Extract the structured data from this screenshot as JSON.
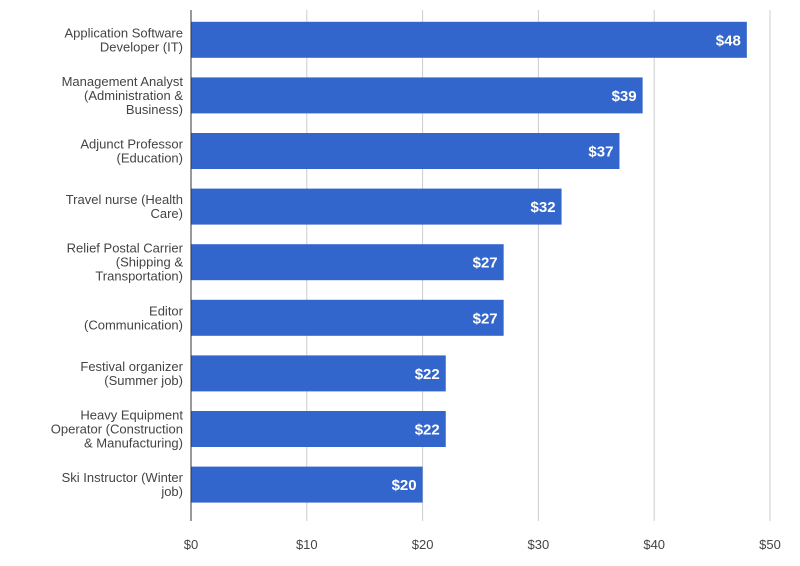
{
  "chart_data": {
    "type": "bar",
    "orientation": "horizontal",
    "title": "",
    "xlabel": "",
    "ylabel": "",
    "xlim": [
      0,
      50
    ],
    "ticks": [
      0,
      10,
      20,
      30,
      40,
      50
    ],
    "tick_labels": [
      "$0",
      "$10",
      "$20",
      "$30",
      "$40",
      "$50"
    ],
    "grid": true,
    "categories": [
      [
        "Application Software",
        "Developer (IT)"
      ],
      [
        "Management Analyst",
        "(Administration &",
        "Business)"
      ],
      [
        "Adjunct Professor",
        "(Education)"
      ],
      [
        "Travel nurse (Health",
        "Care)"
      ],
      [
        "Relief Postal Carrier",
        "(Shipping &",
        "Transportation)"
      ],
      [
        "Editor",
        "(Communication)"
      ],
      [
        "Festival organizer",
        "(Summer job)"
      ],
      [
        "Heavy Equipment",
        "Operator (Construction",
        "& Manufacturing)"
      ],
      [
        "Ski Instructor (Winter",
        "job)"
      ]
    ],
    "values": [
      48,
      39,
      37,
      32,
      27,
      27,
      22,
      22,
      20
    ],
    "value_labels": [
      "$48",
      "$39",
      "$37",
      "$32",
      "$27",
      "$27",
      "$22",
      "$22",
      "$20"
    ],
    "bar_color": "#3366cc"
  }
}
